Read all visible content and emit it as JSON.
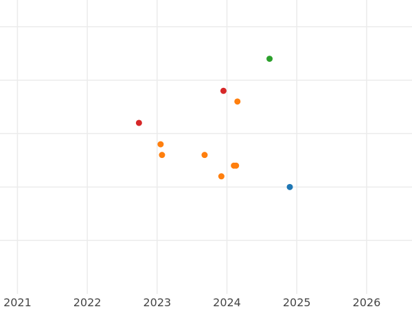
{
  "chart_data": {
    "type": "scatter",
    "title": "",
    "xlabel": "",
    "ylabel": "",
    "grid": true,
    "legend": "none",
    "xlim": [
      2020.75,
      2026.65
    ],
    "ylim": [
      0,
      5.5
    ],
    "x_ticks": [
      2021,
      2022,
      2023,
      2024,
      2025,
      2026
    ],
    "x_tick_labels": [
      "2021",
      "2022",
      "2023",
      "2024",
      "2025",
      "2026"
    ],
    "y_gridlines": [
      1,
      2,
      3,
      4,
      5
    ],
    "series": [
      {
        "color": "#1f77b4",
        "points": [
          {
            "x": 2024.9,
            "y": 2.0
          }
        ]
      },
      {
        "color": "#ff7f0e",
        "points": [
          {
            "x": 2024.15,
            "y": 3.6
          },
          {
            "x": 2023.05,
            "y": 2.8
          },
          {
            "x": 2023.07,
            "y": 2.6
          },
          {
            "x": 2023.68,
            "y": 2.6
          },
          {
            "x": 2024.1,
            "y": 2.4
          },
          {
            "x": 2024.13,
            "y": 2.4
          },
          {
            "x": 2023.92,
            "y": 2.2
          }
        ]
      },
      {
        "color": "#2ca02c",
        "points": [
          {
            "x": 2024.61,
            "y": 4.4
          }
        ]
      },
      {
        "color": "#d62728",
        "points": [
          {
            "x": 2023.95,
            "y": 3.8
          },
          {
            "x": 2022.74,
            "y": 3.2
          }
        ]
      }
    ]
  }
}
